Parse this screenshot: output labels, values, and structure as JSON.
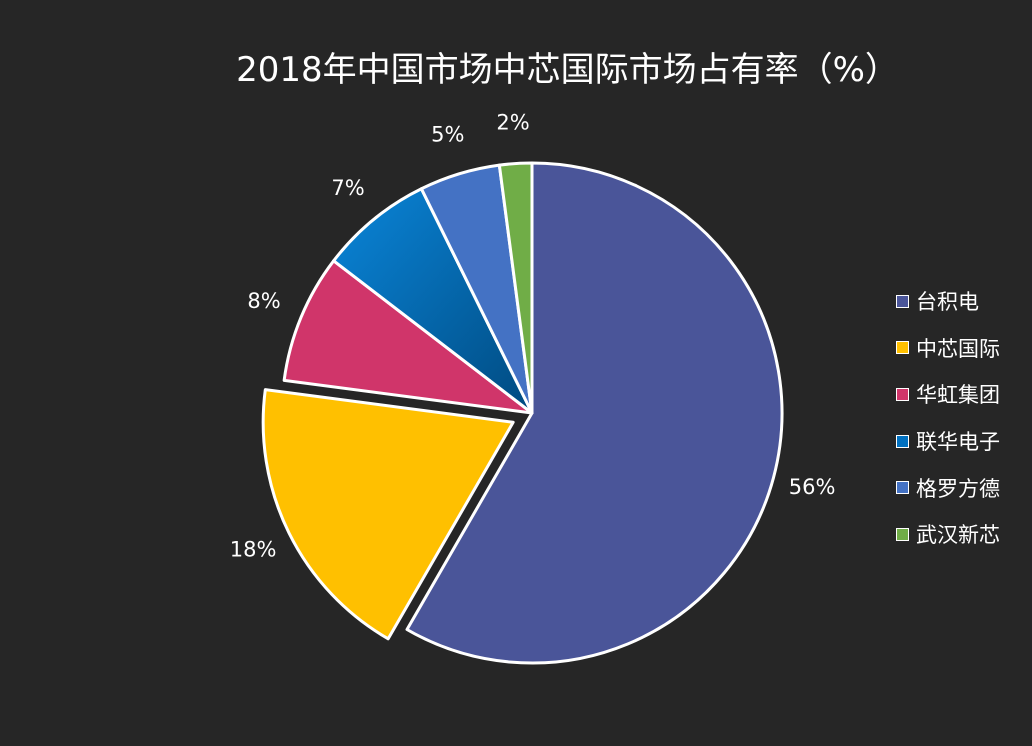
{
  "chart_data": {
    "type": "pie",
    "title": "2018年中国市场中芯国际市场占有率（%）",
    "categories": [
      "台积电",
      "中芯国际",
      "华虹集团",
      "联华电子",
      "格罗方德",
      "武汉新芯"
    ],
    "values": [
      56,
      18,
      8,
      7,
      5,
      2
    ],
    "labels": [
      "56%",
      "18%",
      "8%",
      "7%",
      "5%",
      "2%"
    ],
    "colors": [
      "#4A5599",
      "#FFC000",
      "#D0356A",
      "#0070C0",
      "#4472C4",
      "#70AD47"
    ],
    "exploded": "中芯国际",
    "legend_position": "right",
    "start_angle": "12 o'clock, clockwise"
  }
}
